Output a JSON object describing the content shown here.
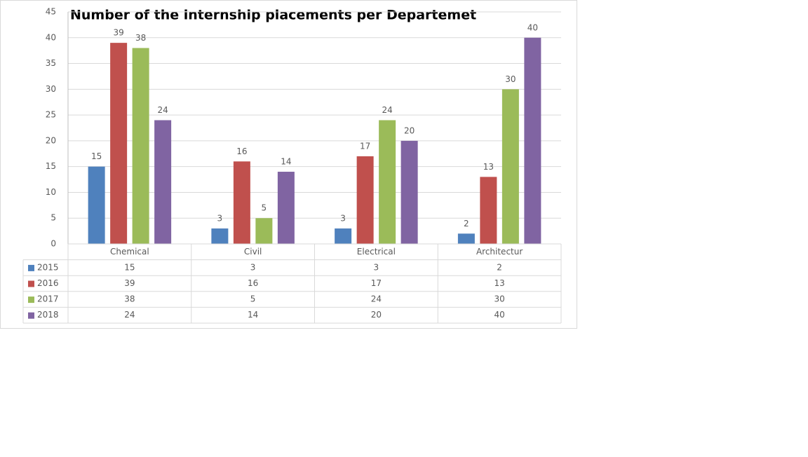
{
  "chart_data": {
    "type": "bar",
    "title": "Number of the internship placements per Departemet",
    "categories": [
      "Chemical",
      "Civil",
      "Electrical",
      "Architectur"
    ],
    "series": [
      {
        "name": "2015",
        "color": "#4f81bd",
        "values": [
          15,
          3,
          3,
          2
        ]
      },
      {
        "name": "2016",
        "color": "#c0504d",
        "values": [
          39,
          16,
          17,
          13
        ]
      },
      {
        "name": "2017",
        "color": "#9bbb59",
        "values": [
          38,
          5,
          24,
          30
        ]
      },
      {
        "name": "2018",
        "color": "#8064a2",
        "values": [
          24,
          14,
          20,
          40
        ]
      }
    ],
    "ylim": [
      0,
      45
    ],
    "yticks": [
      0,
      5,
      10,
      15,
      20,
      25,
      30,
      35,
      40,
      45
    ],
    "grid": true,
    "data_table": true
  }
}
